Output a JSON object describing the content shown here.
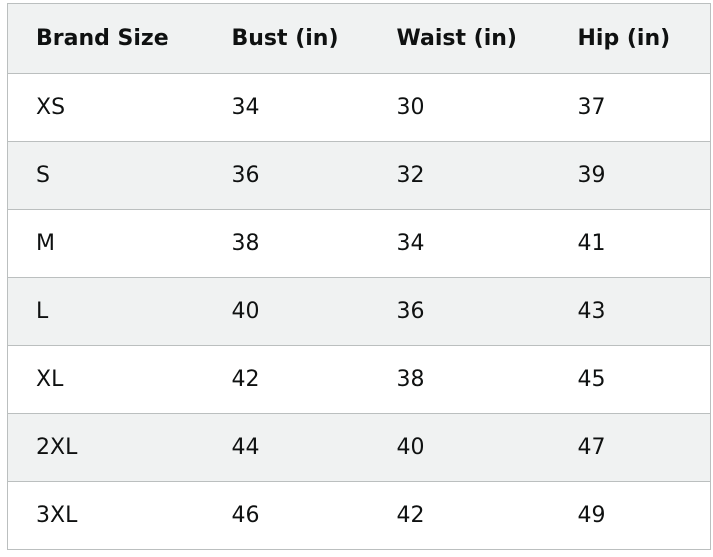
{
  "table": {
    "header": [
      "Brand Size",
      "Bust (in)",
      "Waist (in)",
      "Hip (in)"
    ],
    "rows": [
      [
        "XS",
        34,
        30,
        37
      ],
      [
        "S",
        36,
        32,
        39
      ],
      [
        "M",
        38,
        34,
        41
      ],
      [
        "L",
        40,
        36,
        43
      ],
      [
        "XL",
        42,
        38,
        45
      ],
      [
        "2XL",
        44,
        40,
        47
      ],
      [
        "3XL",
        46,
        42,
        49
      ]
    ]
  }
}
